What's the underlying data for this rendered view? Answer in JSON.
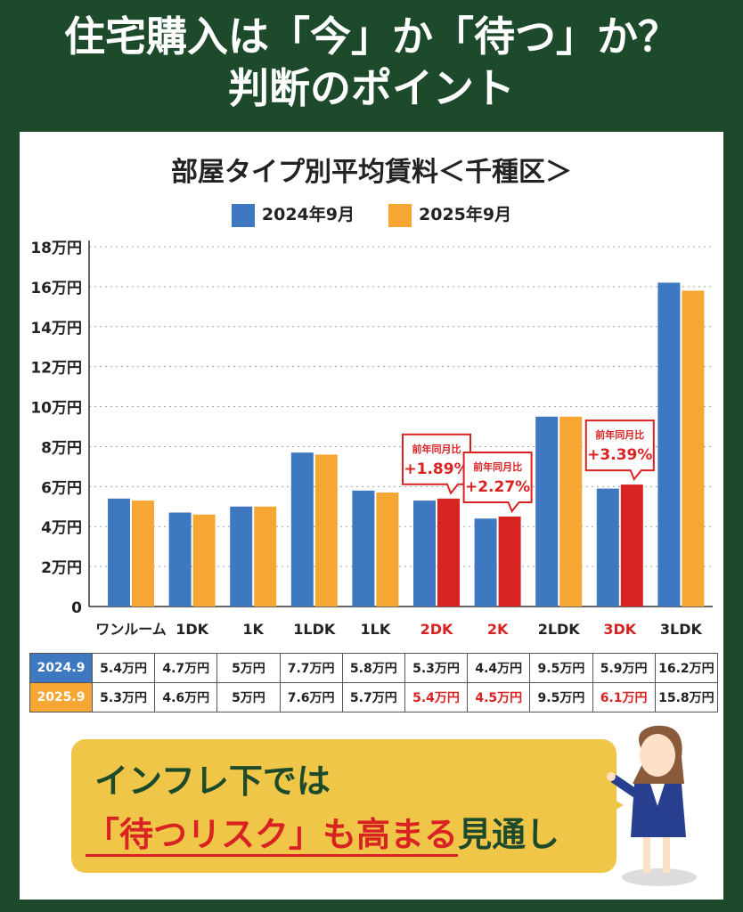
{
  "header": {
    "line1": "住宅購入は「今」か「待つ」か？",
    "line2": "判断のポイント"
  },
  "chart_data": {
    "type": "bar",
    "title": "部屋タイプ別平均賃料＜千種区＞",
    "categories": [
      "ワンルーム",
      "1DK",
      "1K",
      "1LDK",
      "1LK",
      "2DK",
      "2K",
      "2LDK",
      "3DK",
      "3LDK"
    ],
    "highlight_categories": [
      "2DK",
      "2K",
      "3DK"
    ],
    "series": [
      {
        "name": "2024年9月",
        "color": "#3d78c0",
        "values": [
          5.4,
          4.7,
          5,
          7.7,
          5.8,
          5.3,
          4.4,
          9.5,
          5.9,
          16.2
        ]
      },
      {
        "name": "2025年9月",
        "color": "#f6a632",
        "highlight_color": "#d92323",
        "values": [
          5.3,
          4.6,
          5,
          7.6,
          5.7,
          5.4,
          4.5,
          9.5,
          6.1,
          15.8
        ]
      }
    ],
    "yticks": [
      "0",
      "2万円",
      "4万円",
      "6万円",
      "8万円",
      "10万円",
      "12万円",
      "14万円",
      "16万円",
      "18万円"
    ],
    "ylim": [
      0,
      18
    ],
    "grid": true,
    "legend": "top",
    "annotations": [
      {
        "category": "2DK",
        "label": "前年同月比",
        "value": "+1.89%"
      },
      {
        "category": "2K",
        "label": "前年同月比",
        "value": "+2.27%"
      },
      {
        "category": "3DK",
        "label": "前年同月比",
        "value": "+3.39%"
      }
    ]
  },
  "table": {
    "rows": [
      {
        "label": "2024.9",
        "color": "#3d78c0",
        "cells": [
          "5.4万円",
          "4.7万円",
          "5万円",
          "7.7万円",
          "5.8万円",
          "5.3万円",
          "4.4万円",
          "9.5万円",
          "5.9万円",
          "16.2万円"
        ]
      },
      {
        "label": "2025.9",
        "color": "#f6a632",
        "cells": [
          "5.3万円",
          "4.6万円",
          "5万円",
          "7.6万円",
          "5.7万円",
          "5.4万円",
          "4.5万円",
          "9.5万円",
          "6.1万円",
          "15.8万円"
        ],
        "red_indices": [
          5,
          6,
          8
        ]
      }
    ]
  },
  "callout": {
    "line1": "インフレ下では",
    "line2_red": "「待つリスク」も高まる",
    "line2_end": "見通し"
  }
}
